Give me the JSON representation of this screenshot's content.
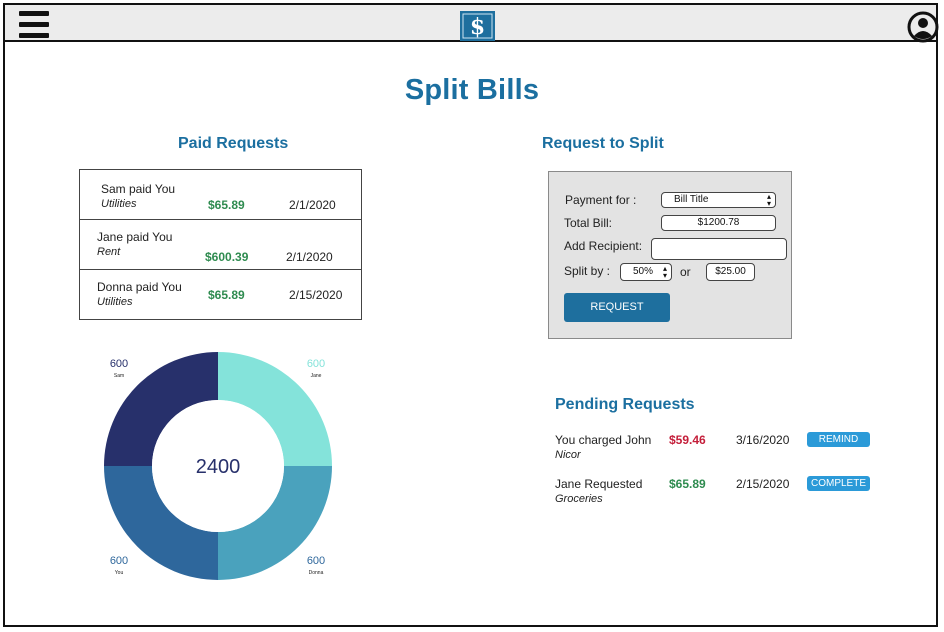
{
  "header": {
    "menu_icon": "hamburger-icon",
    "logo_icon": "dollar-logo-icon",
    "profile_icon": "user-icon"
  },
  "page": {
    "title": "Split Bills"
  },
  "paid": {
    "title": "Paid Requests",
    "rows": [
      {
        "name": "Sam paid You",
        "category": "Utilities",
        "amount": "$65.89",
        "date": "2/1/2020"
      },
      {
        "name": "Jane paid You",
        "category": "Rent",
        "amount": "$600.39",
        "date": "2/1/2020"
      },
      {
        "name": "Donna paid You",
        "category": "Utilities",
        "amount": "$65.89",
        "date": "2/15/2020"
      }
    ]
  },
  "chart_data": {
    "type": "pie",
    "center_label": "2400",
    "slices": [
      {
        "name": "Jane",
        "value": 600,
        "color": "#84e3da"
      },
      {
        "name": "Donna",
        "value": 600,
        "color": "#4aa2bd"
      },
      {
        "name": "You",
        "value": 600,
        "color": "#2e679c"
      },
      {
        "name": "Sam",
        "value": 600,
        "color": "#27306b"
      }
    ]
  },
  "request": {
    "title": "Request to Split",
    "payment_for_label": "Payment for :",
    "payment_for_value": "Bill Title",
    "total_label": "Total Bill:",
    "total_value": "$1200.78",
    "recipient_label": "Add Recipient:",
    "recipient_value": "",
    "split_label": "Split by :",
    "split_percent": "50%",
    "or_label": "or",
    "split_amount": "$25.00",
    "button_label": "REQUEST"
  },
  "pending": {
    "title": "Pending Requests",
    "rows": [
      {
        "name": "You charged John",
        "category": "Nicor",
        "amount": "$59.46",
        "amount_color": "#c41e3a",
        "date": "3/16/2020",
        "action": "REMIND"
      },
      {
        "name": "Jane Requested",
        "category": "Groceries",
        "amount": "$65.89",
        "amount_color": "#2e8b4f",
        "date": "2/15/2020",
        "action": "COMPLETE"
      }
    ]
  }
}
